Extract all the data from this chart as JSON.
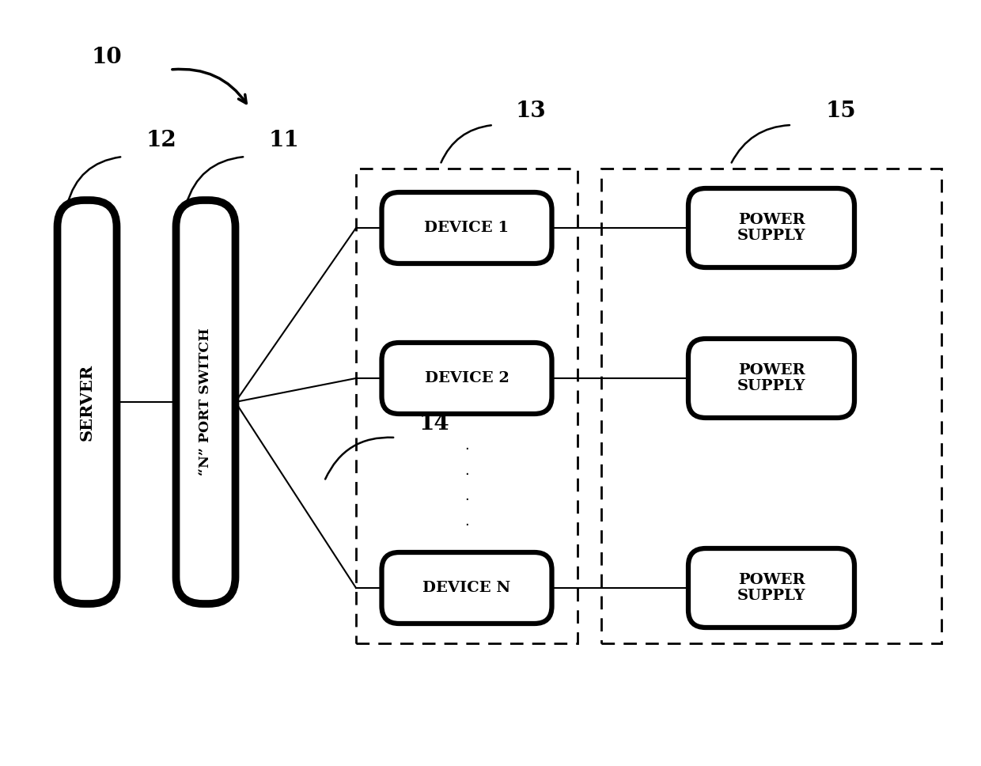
{
  "bg_color": "#ffffff",
  "line_color": "#000000",
  "label_10": "10",
  "label_11": "11",
  "label_12": "12",
  "label_13": "13",
  "label_14": "14",
  "label_15": "15",
  "server_label": "SERVER",
  "switch_label": "“N” PORT SWITCH",
  "device_labels": [
    "DEVICE 1",
    "DEVICE 2",
    "DEVICE N"
  ],
  "power_label": "POWER\nSUPPLY",
  "dots": ".\n.\n.\n.",
  "figsize": [
    12.4,
    9.68
  ],
  "dpi": 100
}
